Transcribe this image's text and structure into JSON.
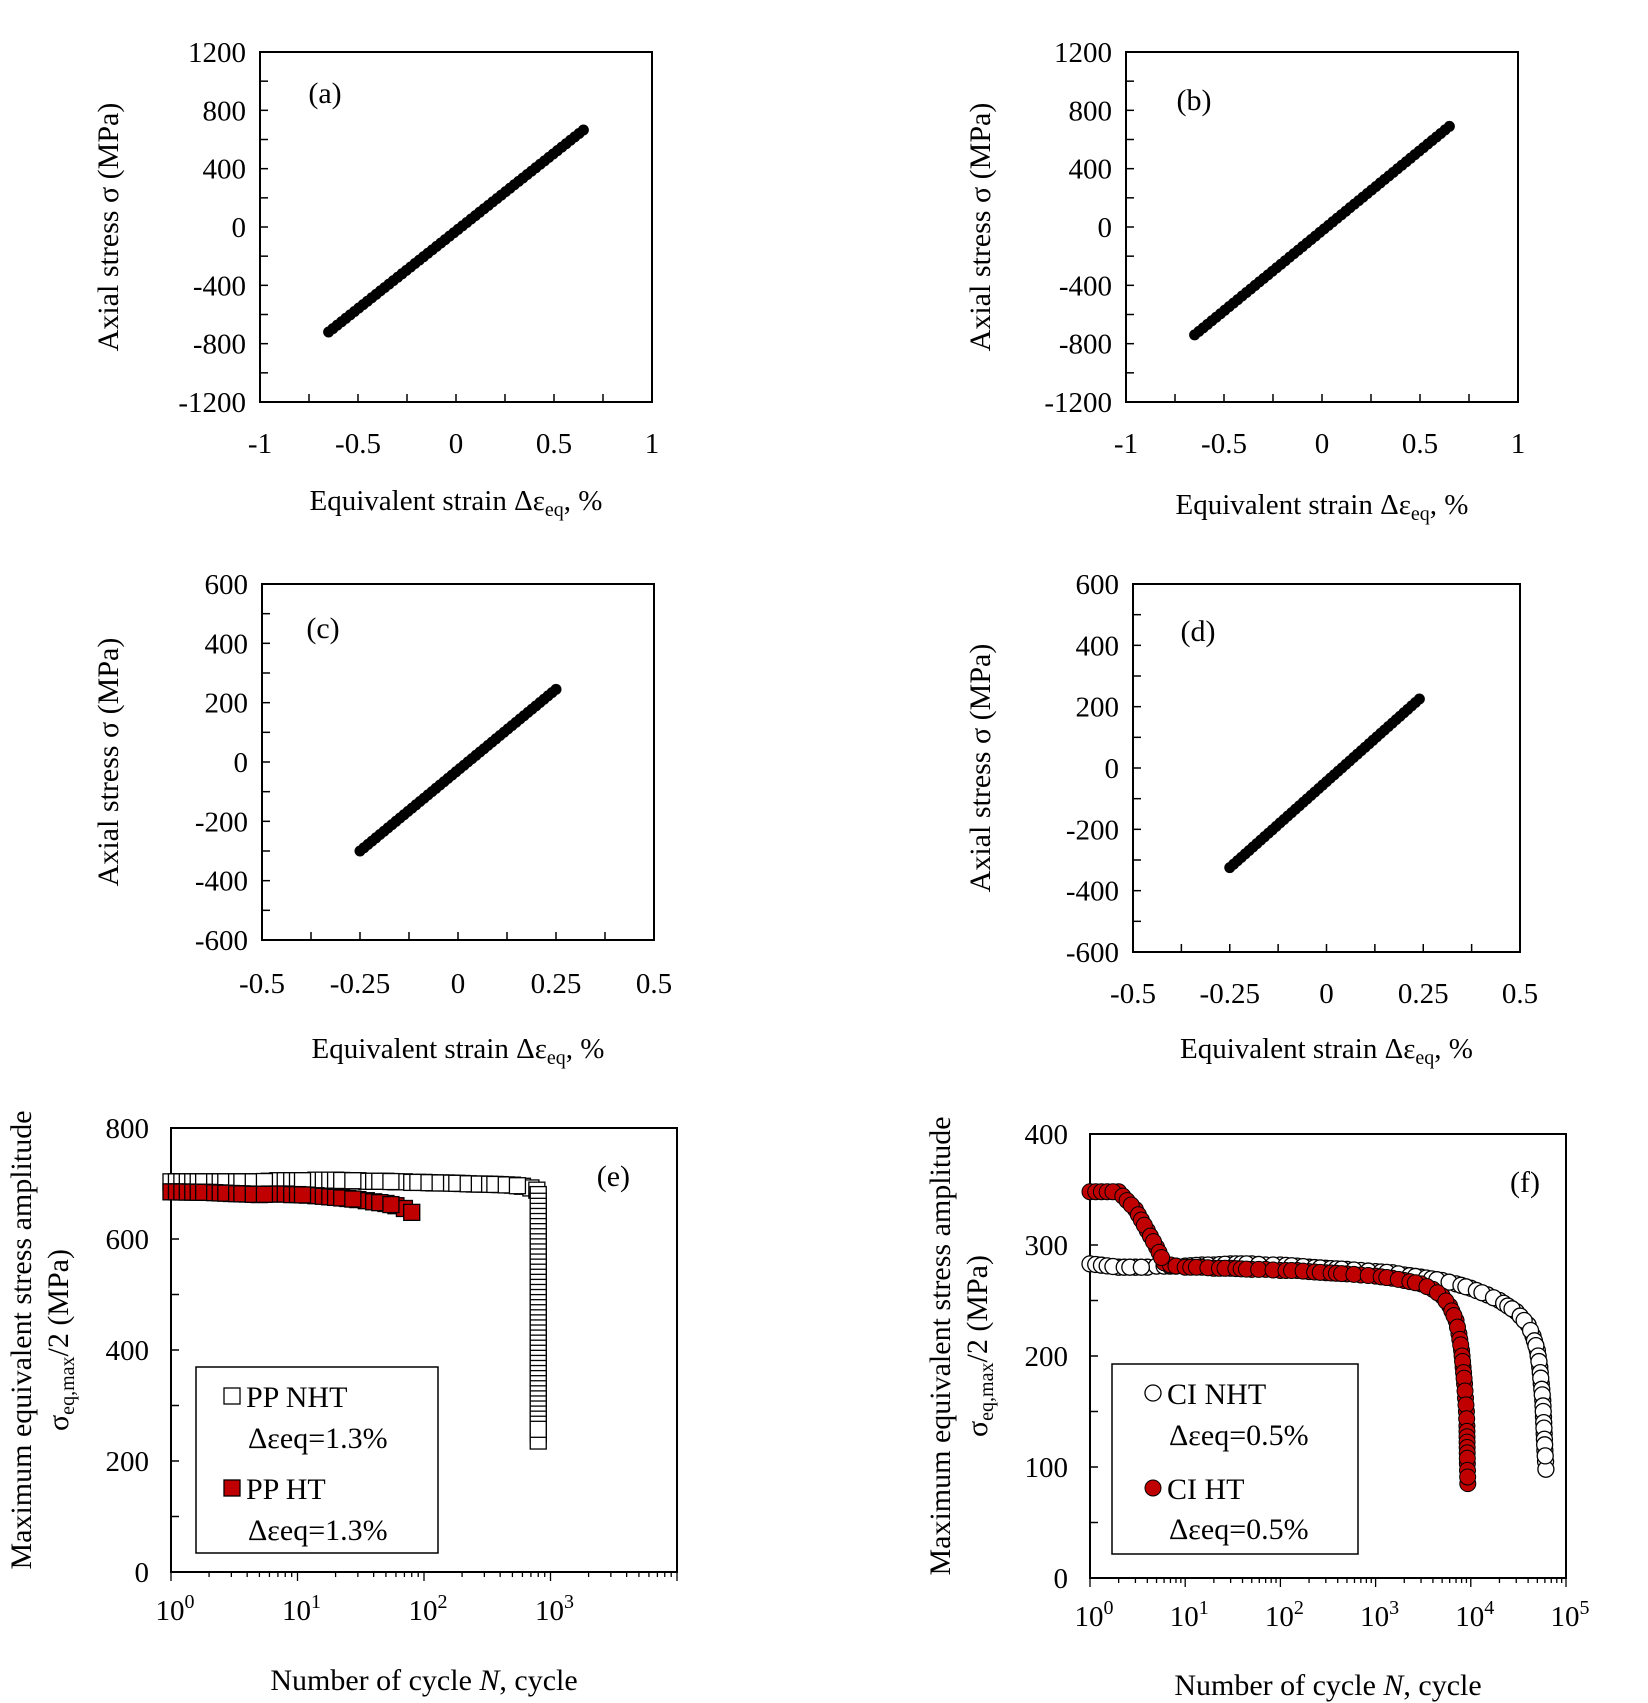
{
  "chart_data": [
    {
      "id": "a",
      "type": "scatter",
      "panel_label": "(a)",
      "xlabel_main": "Equivalent strain Δε",
      "xlabel_sub": "eq",
      "xlabel_tail": ", %",
      "ylabel": "Axial stress σ (MPa)",
      "xlim": [
        -1,
        1
      ],
      "ylim": [
        -1200,
        1200
      ],
      "xticks": [
        -1,
        -0.5,
        0,
        0.5,
        1
      ],
      "xtick_labels": [
        "-1",
        "-0.5",
        "0",
        "0.5",
        "1"
      ],
      "yticks": [
        1200,
        800,
        400,
        0,
        -400,
        -800,
        -1200
      ],
      "ytick_labels": [
        "1200",
        "800",
        "400",
        "0",
        "-400",
        "-800",
        "-1200"
      ],
      "series": [
        {
          "x_range": [
            -0.65,
            0.65
          ],
          "y_range": [
            -720,
            665
          ],
          "n_points": 60,
          "marker": "filled-circle",
          "color": "#000000"
        }
      ]
    },
    {
      "id": "b",
      "type": "scatter",
      "panel_label": "(b)",
      "xlabel_main": "Equivalent strain Δε",
      "xlabel_sub": "eq",
      "xlabel_tail": ", %",
      "ylabel": "Axial stress σ (MPa)",
      "xlim": [
        -1,
        1
      ],
      "ylim": [
        -1200,
        1200
      ],
      "xticks": [
        -1,
        -0.5,
        0,
        0.5,
        1
      ],
      "xtick_labels": [
        "-1",
        "-0.5",
        "0",
        "0.5",
        "1"
      ],
      "yticks": [
        1200,
        800,
        400,
        0,
        -400,
        -800,
        -1200
      ],
      "ytick_labels": [
        "1200",
        "800",
        "400",
        "0",
        "-400",
        "-800",
        "-1200"
      ],
      "series": [
        {
          "x_range": [
            -0.65,
            0.65
          ],
          "y_range": [
            -740,
            690
          ],
          "n_points": 60,
          "marker": "filled-circle",
          "color": "#000000"
        }
      ]
    },
    {
      "id": "c",
      "type": "scatter",
      "panel_label": "(c)",
      "xlabel_main": "Equivalent strain Δε",
      "xlabel_sub": "eq",
      "xlabel_tail": ", %",
      "ylabel": "Axial stress σ (MPa)",
      "xlim": [
        -0.5,
        0.5
      ],
      "ylim": [
        -600,
        600
      ],
      "xticks": [
        -0.5,
        -0.25,
        0,
        0.25,
        0.5
      ],
      "xtick_labels": [
        "-0.5",
        "-0.25",
        "0",
        "0.25",
        "0.5"
      ],
      "yticks": [
        600,
        400,
        200,
        0,
        -200,
        -400,
        -600
      ],
      "ytick_labels": [
        "600",
        "400",
        "200",
        "0",
        "-200",
        "-400",
        "-600"
      ],
      "series": [
        {
          "x_range": [
            -0.25,
            0.25
          ],
          "y_range": [
            -300,
            245
          ],
          "n_points": 50,
          "marker": "filled-circle",
          "color": "#000000"
        }
      ]
    },
    {
      "id": "d",
      "type": "scatter",
      "panel_label": "(d)",
      "xlabel_main": "Equivalent strain Δε",
      "xlabel_sub": "eq",
      "xlabel_tail": ", %",
      "ylabel": "Axial stress σ (MPa)",
      "xlim": [
        -0.5,
        0.5
      ],
      "ylim": [
        -600,
        600
      ],
      "xticks": [
        -0.5,
        -0.25,
        0,
        0.25,
        0.5
      ],
      "xtick_labels": [
        "-0.5",
        "-0.25",
        "0",
        "0.25",
        "0.5"
      ],
      "yticks": [
        600,
        400,
        200,
        0,
        -200,
        -400,
        -600
      ],
      "ytick_labels": [
        "600",
        "400",
        "200",
        "0",
        "-200",
        "-400",
        "-600"
      ],
      "series": [
        {
          "x_range": [
            -0.25,
            0.24
          ],
          "y_range": [
            -325,
            225
          ],
          "n_points": 50,
          "marker": "filled-circle",
          "color": "#000000"
        }
      ]
    },
    {
      "id": "e",
      "type": "scatter",
      "xscale": "log",
      "panel_label": "(e)",
      "xlabel_pre": "Number of cycle ",
      "xlabel_italic": "N",
      "xlabel_post": ", cycle",
      "ylabel_line1": "Maximum equivalent stress amplitude",
      "ylabel_line2_main": "σ",
      "ylabel_line2_sub": "eq,max",
      "ylabel_line2_tail": "/2 (MPa)",
      "xlim": [
        1,
        10000
      ],
      "ylim": [
        0,
        800
      ],
      "xtick_exponents": [
        "0",
        "1",
        "2",
        "3"
      ],
      "xtick_base": "10",
      "yticks": [
        800,
        600,
        400,
        200,
        0
      ],
      "ytick_labels": [
        "800",
        "600",
        "400",
        "200",
        "0"
      ],
      "legend_position": "bottom-left",
      "series": [
        {
          "name_line1": "PP NHT",
          "name_line2": "Δεeq=1.3%",
          "marker": "open-square",
          "color": "#000000",
          "points": [
            [
              1,
              703
            ],
            [
              2,
              703
            ],
            [
              3,
              703
            ],
            [
              4,
              703
            ],
            [
              5,
              703
            ],
            [
              6,
              704
            ],
            [
              7,
              705
            ],
            [
              8,
              705
            ],
            [
              9,
              705
            ],
            [
              10,
              705
            ],
            [
              12,
              705
            ],
            [
              14,
              706
            ],
            [
              16,
              706
            ],
            [
              18,
              706
            ],
            [
              20,
              706
            ],
            [
              25,
              705
            ],
            [
              30,
              705
            ],
            [
              35,
              704
            ],
            [
              40,
              704
            ],
            [
              50,
              704
            ],
            [
              60,
              703
            ],
            [
              70,
              703
            ],
            [
              80,
              702
            ],
            [
              100,
              702
            ],
            [
              120,
              701
            ],
            [
              150,
              701
            ],
            [
              200,
              700
            ],
            [
              250,
              699
            ],
            [
              300,
              699
            ],
            [
              400,
              698
            ],
            [
              500,
              697
            ],
            [
              600,
              695
            ],
            [
              700,
              692
            ],
            [
              780,
              688
            ],
            [
              800,
              680
            ],
            [
              800,
              668
            ],
            [
              800,
              248
            ],
            [
              800,
              236
            ]
          ]
        },
        {
          "name_line1": "PP HT",
          "name_line2": "Δεeq=1.3%",
          "marker": "filled-square",
          "color": "#c00000",
          "points": [
            [
              1,
              685
            ],
            [
              2,
              684
            ],
            [
              3,
              682
            ],
            [
              4,
              681
            ],
            [
              5,
              680
            ],
            [
              6,
              681
            ],
            [
              7,
              681
            ],
            [
              8,
              681
            ],
            [
              9,
              680
            ],
            [
              10,
              680
            ],
            [
              12,
              679
            ],
            [
              14,
              678
            ],
            [
              16,
              677
            ],
            [
              18,
              676
            ],
            [
              20,
              675
            ],
            [
              25,
              673
            ],
            [
              30,
              671
            ],
            [
              35,
              669
            ],
            [
              40,
              667
            ],
            [
              50,
              664
            ],
            [
              60,
              660
            ],
            [
              70,
              655
            ],
            [
              80,
              648
            ]
          ]
        }
      ]
    },
    {
      "id": "f",
      "type": "scatter",
      "xscale": "log",
      "panel_label": "(f)",
      "xlabel_pre": "Number of cycle ",
      "xlabel_italic": "N",
      "xlabel_post": ", cycle",
      "ylabel_line1": "Maximum equivalent stress amplitude",
      "ylabel_line2_main": "σ",
      "ylabel_line2_sub": "eq,max",
      "ylabel_line2_tail": "/2 (MPa)",
      "xlim": [
        1,
        100000
      ],
      "ylim": [
        0,
        400
      ],
      "xtick_exponents": [
        "0",
        "1",
        "2",
        "3",
        "4",
        "5"
      ],
      "xtick_base": "10",
      "yticks": [
        400,
        300,
        200,
        100,
        0
      ],
      "ytick_labels": [
        "400",
        "300",
        "200",
        "100",
        "0"
      ],
      "legend_position": "bottom-left",
      "series": [
        {
          "name_line1": "CI NHT",
          "name_line2": "Δεeq=0.5%",
          "marker": "open-circle",
          "color": "#000000",
          "points": [
            [
              1,
              283
            ],
            [
              2,
              280
            ],
            [
              3,
              280
            ],
            [
              4,
              280
            ],
            [
              5,
              281
            ],
            [
              6,
              281
            ],
            [
              8,
              281
            ],
            [
              10,
              281
            ],
            [
              15,
              282
            ],
            [
              20,
              282
            ],
            [
              30,
              283
            ],
            [
              50,
              283
            ],
            [
              70,
              282
            ],
            [
              100,
              282
            ],
            [
              150,
              281
            ],
            [
              200,
              280
            ],
            [
              300,
              279
            ],
            [
              500,
              278
            ],
            [
              700,
              277
            ],
            [
              1000,
              276
            ],
            [
              1500,
              275
            ],
            [
              2000,
              273
            ],
            [
              3000,
              271
            ],
            [
              5000,
              268
            ],
            [
              7000,
              265
            ],
            [
              10000,
              261
            ],
            [
              15000,
              255
            ],
            [
              20000,
              250
            ],
            [
              30000,
              240
            ],
            [
              40000,
              228
            ],
            [
              45000,
              218
            ],
            [
              50000,
              205
            ],
            [
              53000,
              190
            ],
            [
              55000,
              175
            ],
            [
              57000,
              160
            ],
            [
              58000,
              145
            ],
            [
              59000,
              130
            ],
            [
              60000,
              115
            ],
            [
              61000,
              105
            ],
            [
              61500,
              98
            ]
          ]
        },
        {
          "name_line1": "CI HT",
          "name_line2": "Δεeq=0.5%",
          "marker": "filled-circle",
          "color": "#c00000",
          "points": [
            [
              1,
              348
            ],
            [
              2,
              348
            ],
            [
              3,
              332
            ],
            [
              4,
              313
            ],
            [
              5,
              298
            ],
            [
              6,
              284
            ],
            [
              7,
              282
            ],
            [
              8,
              281
            ],
            [
              10,
              280
            ],
            [
              15,
              280
            ],
            [
              20,
              279
            ],
            [
              30,
              279
            ],
            [
              50,
              278
            ],
            [
              70,
              278
            ],
            [
              100,
              277
            ],
            [
              150,
              277
            ],
            [
              200,
              276
            ],
            [
              300,
              275
            ],
            [
              500,
              274
            ],
            [
              700,
              273
            ],
            [
              1000,
              272
            ],
            [
              1500,
              270
            ],
            [
              2000,
              268
            ],
            [
              3000,
              265
            ],
            [
              4000,
              260
            ],
            [
              5000,
              254
            ],
            [
              6000,
              245
            ],
            [
              7000,
              232
            ],
            [
              7500,
              220
            ],
            [
              8000,
              205
            ],
            [
              8300,
              190
            ],
            [
              8600,
              175
            ],
            [
              8800,
              162
            ],
            [
              9000,
              150
            ],
            [
              9100,
              137
            ],
            [
              9200,
              103
            ],
            [
              9300,
              85
            ]
          ]
        }
      ]
    }
  ]
}
